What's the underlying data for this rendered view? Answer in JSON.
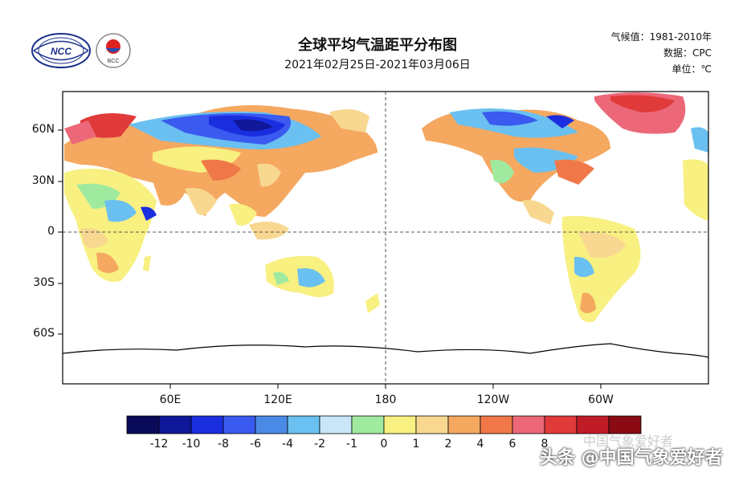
{
  "title": "全球平均气温距平分布图",
  "subtitle": "2021年02月25日-2021年03月06日",
  "meta": {
    "climate": "气候值：1981-2010年",
    "data": "数据：CPC",
    "unit": "单位：℃"
  },
  "logos": {
    "ncc": "NCC",
    "bcc": "BCC"
  },
  "axes": {
    "y_ticks": [
      "60N",
      "30N",
      "0",
      "30S",
      "60S"
    ],
    "x_ticks": [
      "60E",
      "120E",
      "180",
      "120W",
      "60W"
    ]
  },
  "colorbar": {
    "labels": [
      "-12",
      "-10",
      "-8",
      "-6",
      "-4",
      "-2",
      "-1",
      "0",
      "1",
      "2",
      "4",
      "6",
      "8"
    ],
    "colors": [
      "#0a0a5a",
      "#10189a",
      "#1a2ee0",
      "#3a5af0",
      "#4a8ae6",
      "#6ac0f0",
      "#c8e6f8",
      "#a0eaa0",
      "#f8f080",
      "#f8d890",
      "#f4a860",
      "#f07848",
      "#ec6878",
      "#e03a3a",
      "#c01c28",
      "#8a0a14"
    ]
  },
  "watermark": {
    "main": "头条 @中国气象爱好者",
    "faded": "中国气象爱好者"
  },
  "icons": {
    "logo_ncc": "ncc-logo-icon",
    "logo_bcc": "bcc-logo-icon"
  }
}
